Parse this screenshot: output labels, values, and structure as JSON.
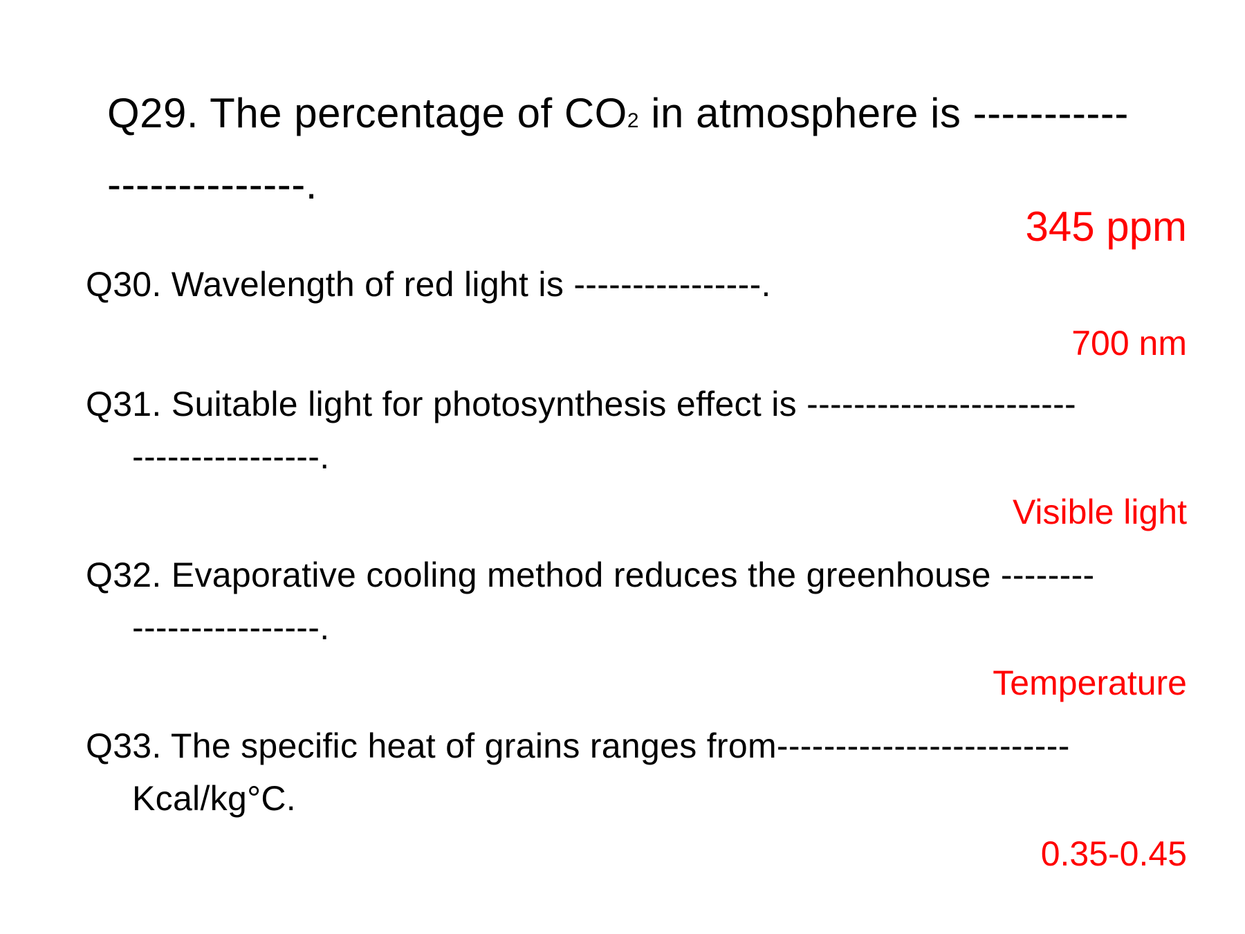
{
  "colors": {
    "background": "#ffffff",
    "question_text": "#000000",
    "answer_text": "#ff0000"
  },
  "questions": [
    {
      "id": "Q29",
      "line1_before_sub": "Q29. The percentage of CO",
      "subscript": "2",
      "line1_after_sub": " in atmosphere is -----------",
      "line2": "--------------.",
      "answer": "345 ppm"
    },
    {
      "id": "Q30",
      "line1": "Q30. Wavelength of red light is ----------------.",
      "answer": "700 nm"
    },
    {
      "id": "Q31",
      "line1": "Q31. Suitable light for photosynthesis effect is -----------------------",
      "line2": "----------------.",
      "answer": "Visible light"
    },
    {
      "id": "Q32",
      "line1": "Q32. Evaporative cooling method reduces the greenhouse --------",
      "line2": "----------------.",
      "answer": "Temperature"
    },
    {
      "id": "Q33",
      "line1": "Q33. The specific heat  of grains ranges from-------------------------",
      "line2": "Kcal/kg°C.",
      "answer": "0.35-0.45"
    }
  ]
}
